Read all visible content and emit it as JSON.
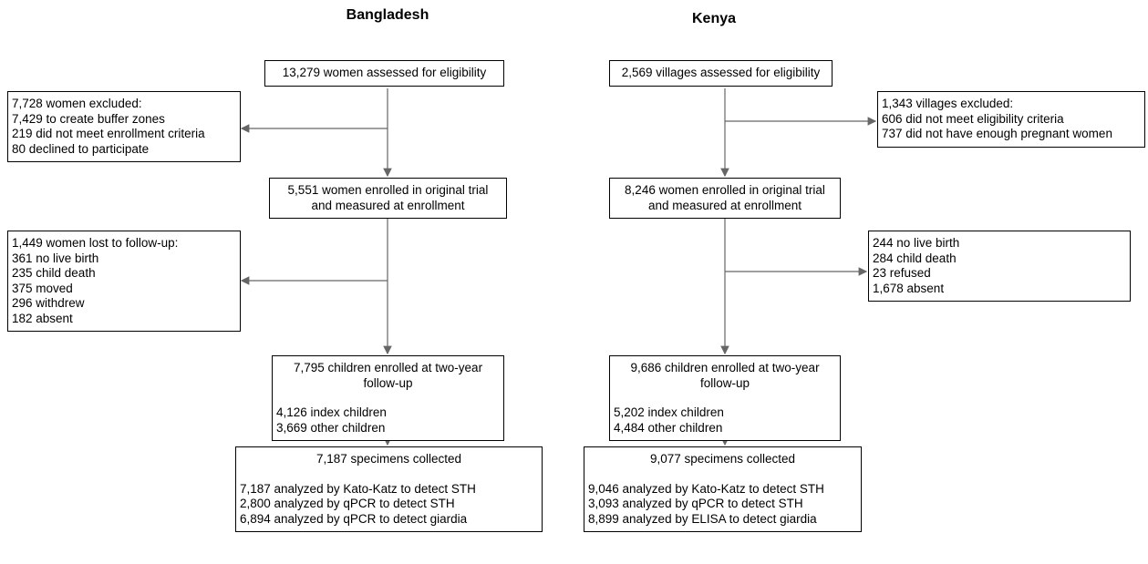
{
  "columns": [
    {
      "title": "Bangladesh",
      "boxes": [
        {
          "lines": [
            "13,279 women assessed for eligibility"
          ]
        },
        {
          "lines": [
            "7,728 women excluded:",
            "7,429 to create buffer zones",
            "219 did not meet enrollment criteria",
            "80 declined to participate"
          ]
        },
        {
          "lines": [
            "5,551 women enrolled in original trial",
            "and measured at enrollment"
          ]
        },
        {
          "lines": [
            "1,449 women lost to follow-up:",
            "361 no live birth",
            "235 child death",
            "375 moved",
            "296 withdrew",
            "182 absent"
          ]
        },
        {
          "lines": [
            "7,795 children enrolled at two-year",
            "follow-up"
          ],
          "details": [
            "4,126 index children",
            "3,669 other children"
          ]
        },
        {
          "lines": [
            "7,187 specimens collected"
          ],
          "details": [
            "7,187 analyzed by Kato-Katz to detect STH",
            "2,800 analyzed by qPCR to detect STH",
            "6,894 analyzed by qPCR to detect giardia"
          ]
        }
      ]
    },
    {
      "title": "Kenya",
      "boxes": [
        {
          "lines": [
            "2,569 villages assessed for eligibility"
          ]
        },
        {
          "lines": [
            "1,343 villages excluded:",
            "606 did not meet eligibility criteria",
            "737 did not have enough pregnant women"
          ]
        },
        {
          "lines": [
            "8,246 women enrolled in original trial",
            "and measured at enrollment"
          ]
        },
        {
          "lines": [
            "244 no live birth",
            "284 child death",
            "23 refused",
            "1,678 absent"
          ]
        },
        {
          "lines": [
            "9,686 children enrolled at two-year",
            "follow-up"
          ],
          "details": [
            "5,202 index children",
            "4,484 other children"
          ]
        },
        {
          "lines": [
            "9,077 specimens collected"
          ],
          "details": [
            "9,046 analyzed by Kato-Katz to detect STH",
            "3,093 analyzed by qPCR to detect STH",
            "8,899 analyzed by ELISA to detect giardia"
          ]
        }
      ]
    }
  ]
}
